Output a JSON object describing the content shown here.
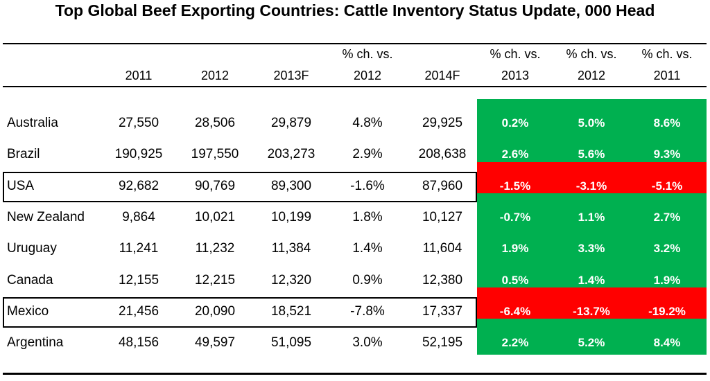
{
  "title": "Top Global Beef Exporting Countries: Cattle Inventory Status Update, 000 Head",
  "colors": {
    "positive": "#00b050",
    "negative": "#ff0000",
    "text_on_fill": "#ffffff"
  },
  "headers": [
    {
      "line1": "",
      "line2": "2011"
    },
    {
      "line1": "",
      "line2": "2012"
    },
    {
      "line1": "",
      "line2": "2013F"
    },
    {
      "line1": "% ch. vs.",
      "line2": "2012"
    },
    {
      "line1": "",
      "line2": "2014F"
    },
    {
      "line1": "% ch. vs.",
      "line2": "2013"
    },
    {
      "line1": "% ch. vs.",
      "line2": "2012"
    },
    {
      "line1": "% ch. vs.",
      "line2": "2011"
    }
  ],
  "chart_data": {
    "type": "table",
    "title": "Top Global Beef Exporting Countries: Cattle Inventory Status Update, 000 Head",
    "columns": [
      "2011",
      "2012",
      "2013F",
      "% ch. vs. 2012",
      "2014F",
      "% ch. vs. 2013",
      "% ch. vs. 2012",
      "% ch. vs. 2011"
    ],
    "rows": [
      {
        "country": "Australia",
        "cells": [
          "27,550",
          "28,506",
          "29,879",
          "4.8%",
          "29,925",
          "0.2%",
          "5.0%",
          "8.6%"
        ],
        "status": "positive",
        "boxed": false
      },
      {
        "country": "Brazil",
        "cells": [
          "190,925",
          "197,550",
          "203,273",
          "2.9%",
          "208,638",
          "2.6%",
          "5.6%",
          "9.3%"
        ],
        "status": "positive",
        "boxed": false
      },
      {
        "country": "USA",
        "cells": [
          "92,682",
          "90,769",
          "89,300",
          "-1.6%",
          "87,960",
          "-1.5%",
          "-3.1%",
          "-5.1%"
        ],
        "status": "negative",
        "boxed": true
      },
      {
        "country": "New Zealand",
        "cells": [
          "9,864",
          "10,021",
          "10,199",
          "1.8%",
          "10,127",
          "-0.7%",
          "1.1%",
          "2.7%"
        ],
        "status": "positive",
        "boxed": false
      },
      {
        "country": "Uruguay",
        "cells": [
          "11,241",
          "11,232",
          "11,384",
          "1.4%",
          "11,604",
          "1.9%",
          "3.3%",
          "3.2%"
        ],
        "status": "positive",
        "boxed": false
      },
      {
        "country": "Canada",
        "cells": [
          "12,155",
          "12,215",
          "12,320",
          "0.9%",
          "12,380",
          "0.5%",
          "1.4%",
          "1.9%"
        ],
        "status": "positive",
        "boxed": false
      },
      {
        "country": "Mexico",
        "cells": [
          "21,456",
          "20,090",
          "18,521",
          "-7.8%",
          "17,337",
          "-6.4%",
          "-13.7%",
          "-19.2%"
        ],
        "status": "negative",
        "boxed": true
      },
      {
        "country": "Argentina",
        "cells": [
          "48,156",
          "49,597",
          "51,095",
          "3.0%",
          "52,195",
          "2.2%",
          "5.2%",
          "8.4%"
        ],
        "status": "positive",
        "boxed": false
      }
    ]
  }
}
